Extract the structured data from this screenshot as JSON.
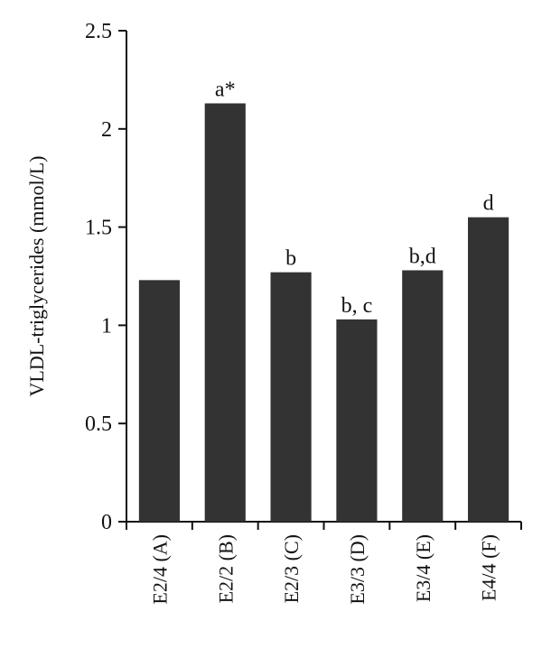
{
  "chart_data": {
    "type": "bar",
    "ylabel": "VLDL-triglycerides (mmol/L)",
    "categories": [
      "E2/4 (A)",
      "E2/2 (B)",
      "E2/3 (C)",
      "E3/3 (D)",
      "E3/4 (E)",
      "E4/4 (F)"
    ],
    "values": [
      1.23,
      2.13,
      1.27,
      1.03,
      1.28,
      1.55
    ],
    "annotations": [
      null,
      "a*",
      "b",
      "b, c",
      "b,d",
      "d"
    ],
    "color": "#333333",
    "ylim": [
      0,
      2.5
    ],
    "yticks": [
      0,
      0.5,
      1,
      1.5,
      2,
      2.5
    ],
    "grid": false
  }
}
